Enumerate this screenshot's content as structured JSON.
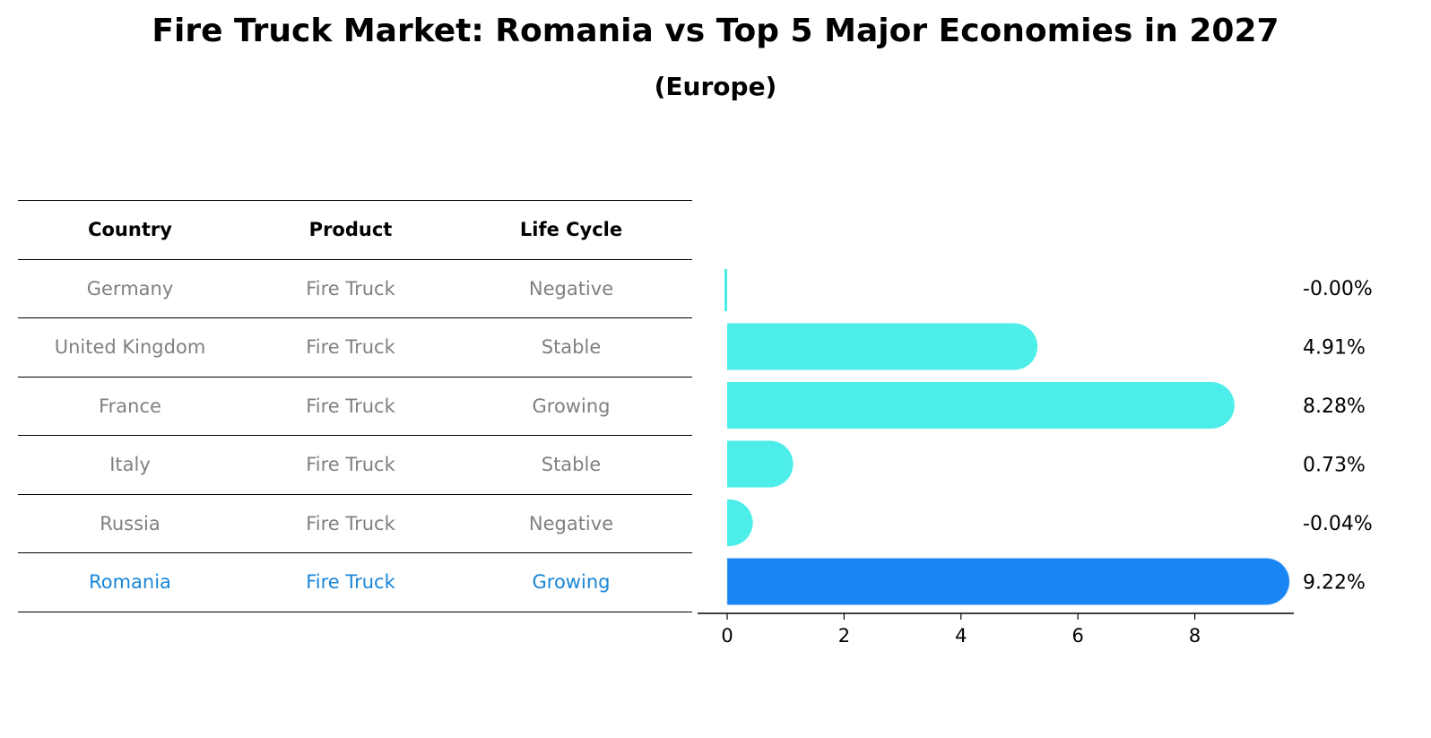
{
  "title": "Fire Truck Market: Romania vs Top 5 Major Economies in 2027",
  "subtitle": "(Europe)",
  "table": {
    "headers": [
      "Country",
      "Product",
      "Life Cycle"
    ],
    "rows": [
      [
        "Germany",
        "Fire Truck",
        "Negative"
      ],
      [
        "United Kingdom",
        "Fire Truck",
        "Stable"
      ],
      [
        "France",
        "Fire Truck",
        "Growing"
      ],
      [
        "Italy",
        "Fire Truck",
        "Stable"
      ],
      [
        "Russia",
        "Fire Truck",
        "Negative"
      ],
      [
        "Romania",
        "Fire Truck",
        "Growing"
      ]
    ],
    "highlight_row": 5
  },
  "colors": {
    "bar": "#4deeea",
    "highlight": "#1a86f5",
    "highlight_text": "#1a86d8",
    "muted_text": "#808080"
  },
  "chart_data": {
    "type": "bar",
    "orientation": "horizontal",
    "categories": [
      "Germany",
      "United Kingdom",
      "France",
      "Italy",
      "Russia",
      "Romania"
    ],
    "values": [
      -0.0,
      4.91,
      8.28,
      0.73,
      -0.04,
      9.22
    ],
    "labels": [
      "-0.00%",
      "4.91%",
      "8.28%",
      "0.73%",
      "-0.04%",
      "9.22%"
    ],
    "xticks": [
      0,
      2,
      4,
      6,
      8
    ],
    "xlim": [
      -0.5,
      9.7
    ],
    "highlight_index": 5,
    "grid": false
  }
}
